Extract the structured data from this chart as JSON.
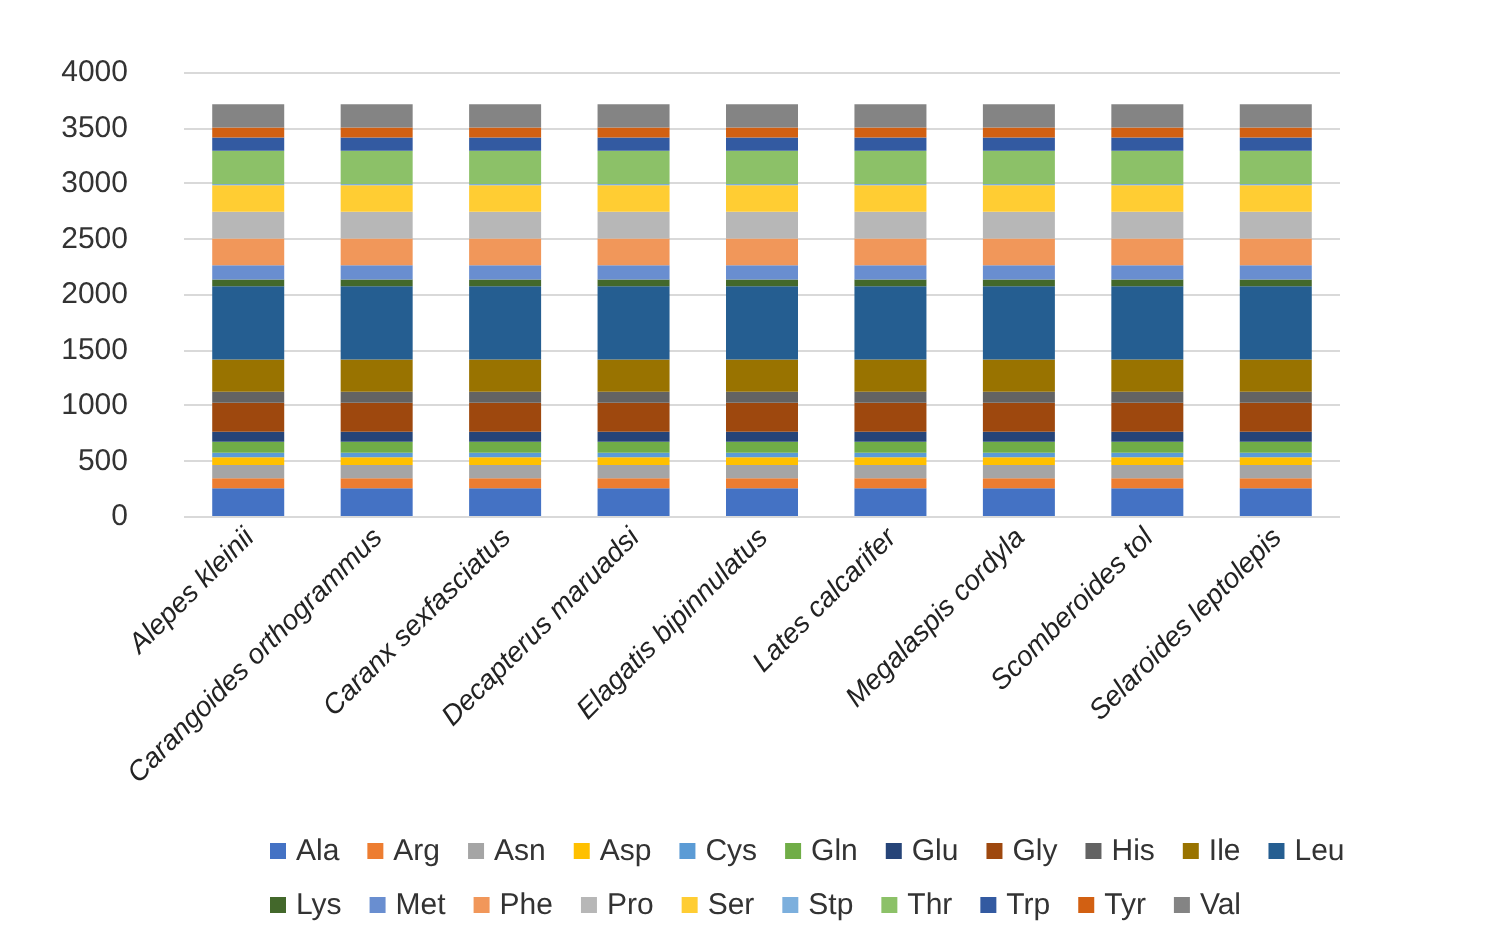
{
  "chart_data": {
    "type": "bar",
    "stacked": true,
    "categories": [
      "Alepes kleinii",
      "Carangoides orthogrammus",
      "Caranx sexfasciatus",
      "Decapterus maruadsi",
      "Elagatis bipinnulatus",
      "Lates calcarifer",
      "Megalaspis cordyla",
      "Scomberoides tol",
      "Selaroides leptolepis"
    ],
    "series": [
      {
        "name": "Ala",
        "color": "#4472c4",
        "values": [
          250,
          250,
          250,
          250,
          250,
          250,
          250,
          250,
          250
        ]
      },
      {
        "name": "Arg",
        "color": "#ed7d31",
        "values": [
          90,
          90,
          90,
          90,
          90,
          90,
          90,
          90,
          90
        ]
      },
      {
        "name": "Asn",
        "color": "#a5a5a5",
        "values": [
          120,
          120,
          120,
          120,
          120,
          120,
          120,
          120,
          120
        ]
      },
      {
        "name": "Asp",
        "color": "#ffc000",
        "values": [
          70,
          70,
          70,
          70,
          70,
          70,
          70,
          70,
          70
        ]
      },
      {
        "name": "Cys",
        "color": "#5b9bd5",
        "values": [
          40,
          40,
          40,
          40,
          40,
          40,
          40,
          40,
          40
        ]
      },
      {
        "name": "Gln",
        "color": "#70ad47",
        "values": [
          100,
          100,
          100,
          100,
          100,
          100,
          100,
          100,
          100
        ]
      },
      {
        "name": "Glu",
        "color": "#264478",
        "values": [
          90,
          90,
          90,
          90,
          90,
          90,
          90,
          90,
          90
        ]
      },
      {
        "name": "Gly",
        "color": "#9e480e",
        "values": [
          260,
          260,
          260,
          260,
          260,
          260,
          260,
          260,
          260
        ]
      },
      {
        "name": "His",
        "color": "#636363",
        "values": [
          100,
          100,
          100,
          100,
          100,
          100,
          100,
          100,
          100
        ]
      },
      {
        "name": "Ile",
        "color": "#997300",
        "values": [
          290,
          290,
          290,
          290,
          290,
          290,
          290,
          290,
          290
        ]
      },
      {
        "name": "Leu",
        "color": "#255e91",
        "values": [
          660,
          660,
          660,
          660,
          660,
          660,
          660,
          660,
          660
        ]
      },
      {
        "name": "Lys",
        "color": "#43682b",
        "values": [
          60,
          60,
          60,
          60,
          60,
          60,
          60,
          60,
          60
        ]
      },
      {
        "name": "Met",
        "color": "#698ed0",
        "values": [
          130,
          130,
          130,
          130,
          130,
          130,
          130,
          130,
          130
        ]
      },
      {
        "name": "Phe",
        "color": "#f1975a",
        "values": [
          240,
          240,
          240,
          240,
          240,
          240,
          240,
          240,
          240
        ]
      },
      {
        "name": "Pro",
        "color": "#b7b7b7",
        "values": [
          240,
          240,
          240,
          240,
          240,
          240,
          240,
          240,
          240
        ]
      },
      {
        "name": "Ser",
        "color": "#ffcd33",
        "values": [
          240,
          240,
          240,
          240,
          240,
          240,
          240,
          240,
          240
        ]
      },
      {
        "name": "Stp",
        "color": "#7cafdd",
        "values": [
          10,
          10,
          10,
          10,
          10,
          10,
          10,
          10,
          10
        ]
      },
      {
        "name": "Thr",
        "color": "#8cc168",
        "values": [
          300,
          300,
          300,
          300,
          300,
          300,
          300,
          300,
          300
        ]
      },
      {
        "name": "Trp",
        "color": "#335aa1",
        "values": [
          120,
          120,
          120,
          120,
          120,
          120,
          120,
          120,
          120
        ]
      },
      {
        "name": "Tyr",
        "color": "#d26012",
        "values": [
          90,
          90,
          90,
          90,
          90,
          90,
          90,
          90,
          90
        ]
      },
      {
        "name": "Val",
        "color": "#848484",
        "values": [
          210,
          210,
          210,
          210,
          210,
          210,
          210,
          210,
          210
        ]
      }
    ],
    "ylim": [
      0,
      4000
    ],
    "yticks": [
      0,
      500,
      1000,
      1500,
      2000,
      2500,
      3000,
      3500,
      4000
    ],
    "grid": "y",
    "legend": "bottom"
  }
}
